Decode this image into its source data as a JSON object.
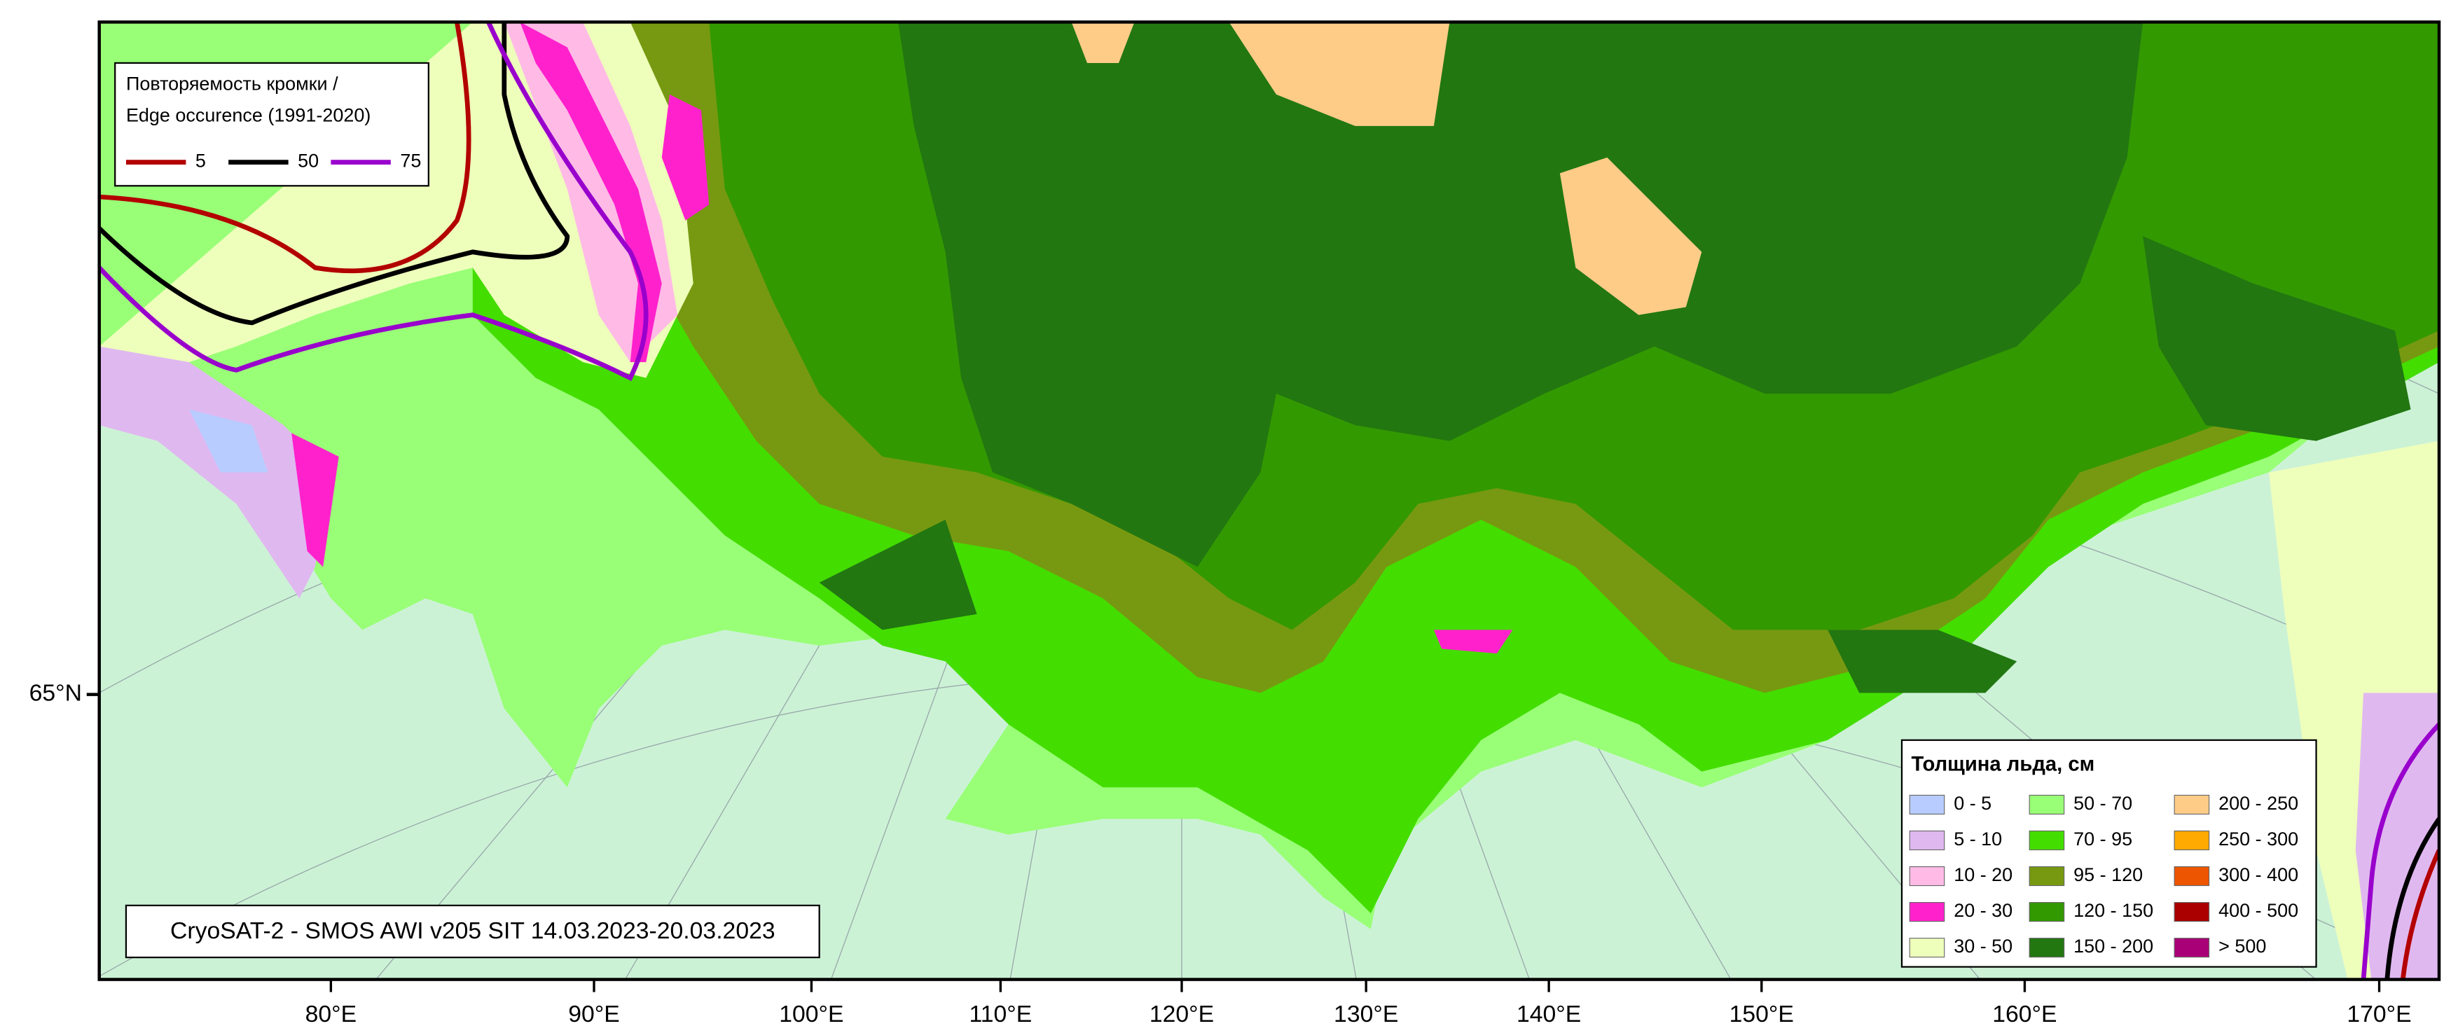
{
  "map": {
    "edge_legend": {
      "title_ru": "Повторяемость кромки /",
      "title_en": "Edge occurence (1991-2020)",
      "items": [
        {
          "label": "5",
          "color": "#b30000"
        },
        {
          "label": "50",
          "color": "#000000"
        },
        {
          "label": "75",
          "color": "#9900cc"
        }
      ]
    },
    "thickness_legend": {
      "title": "Толщина льда, см",
      "items": [
        {
          "label": "0 - 5",
          "color": "#b8ccff"
        },
        {
          "label": "5 - 10",
          "color": "#e0b8f0"
        },
        {
          "label": "10 - 20",
          "color": "#ffbbe6"
        },
        {
          "label": "20 - 30",
          "color": "#ff22cc"
        },
        {
          "label": "30 - 50",
          "color": "#eeffbb"
        },
        {
          "label": "50 - 70",
          "color": "#99ff77"
        },
        {
          "label": "70 - 95",
          "color": "#44dd00"
        },
        {
          "label": "95 - 120",
          "color": "#779911"
        },
        {
          "label": "120 - 150",
          "color": "#339900"
        },
        {
          "label": "150 - 200",
          "color": "#227711"
        },
        {
          "label": "200 - 250",
          "color": "#ffcc88"
        },
        {
          "label": "250 - 300",
          "color": "#ffaa00"
        },
        {
          "label": "300 - 400",
          "color": "#ee5500"
        },
        {
          "label": "400 - 500",
          "color": "#aa0000"
        },
        {
          "label": "> 500",
          "color": "#aa0077"
        }
      ]
    },
    "caption": "CryoSAT-2 - SMOS AWI v205 SIT 14.03.2023-20.03.2023",
    "lon_labels": [
      "80°E",
      "90°E",
      "100°E",
      "110°E",
      "120°E",
      "130°E",
      "140°E",
      "150°E",
      "160°E",
      "170°E"
    ],
    "lat_labels": [
      "65°N"
    ]
  }
}
